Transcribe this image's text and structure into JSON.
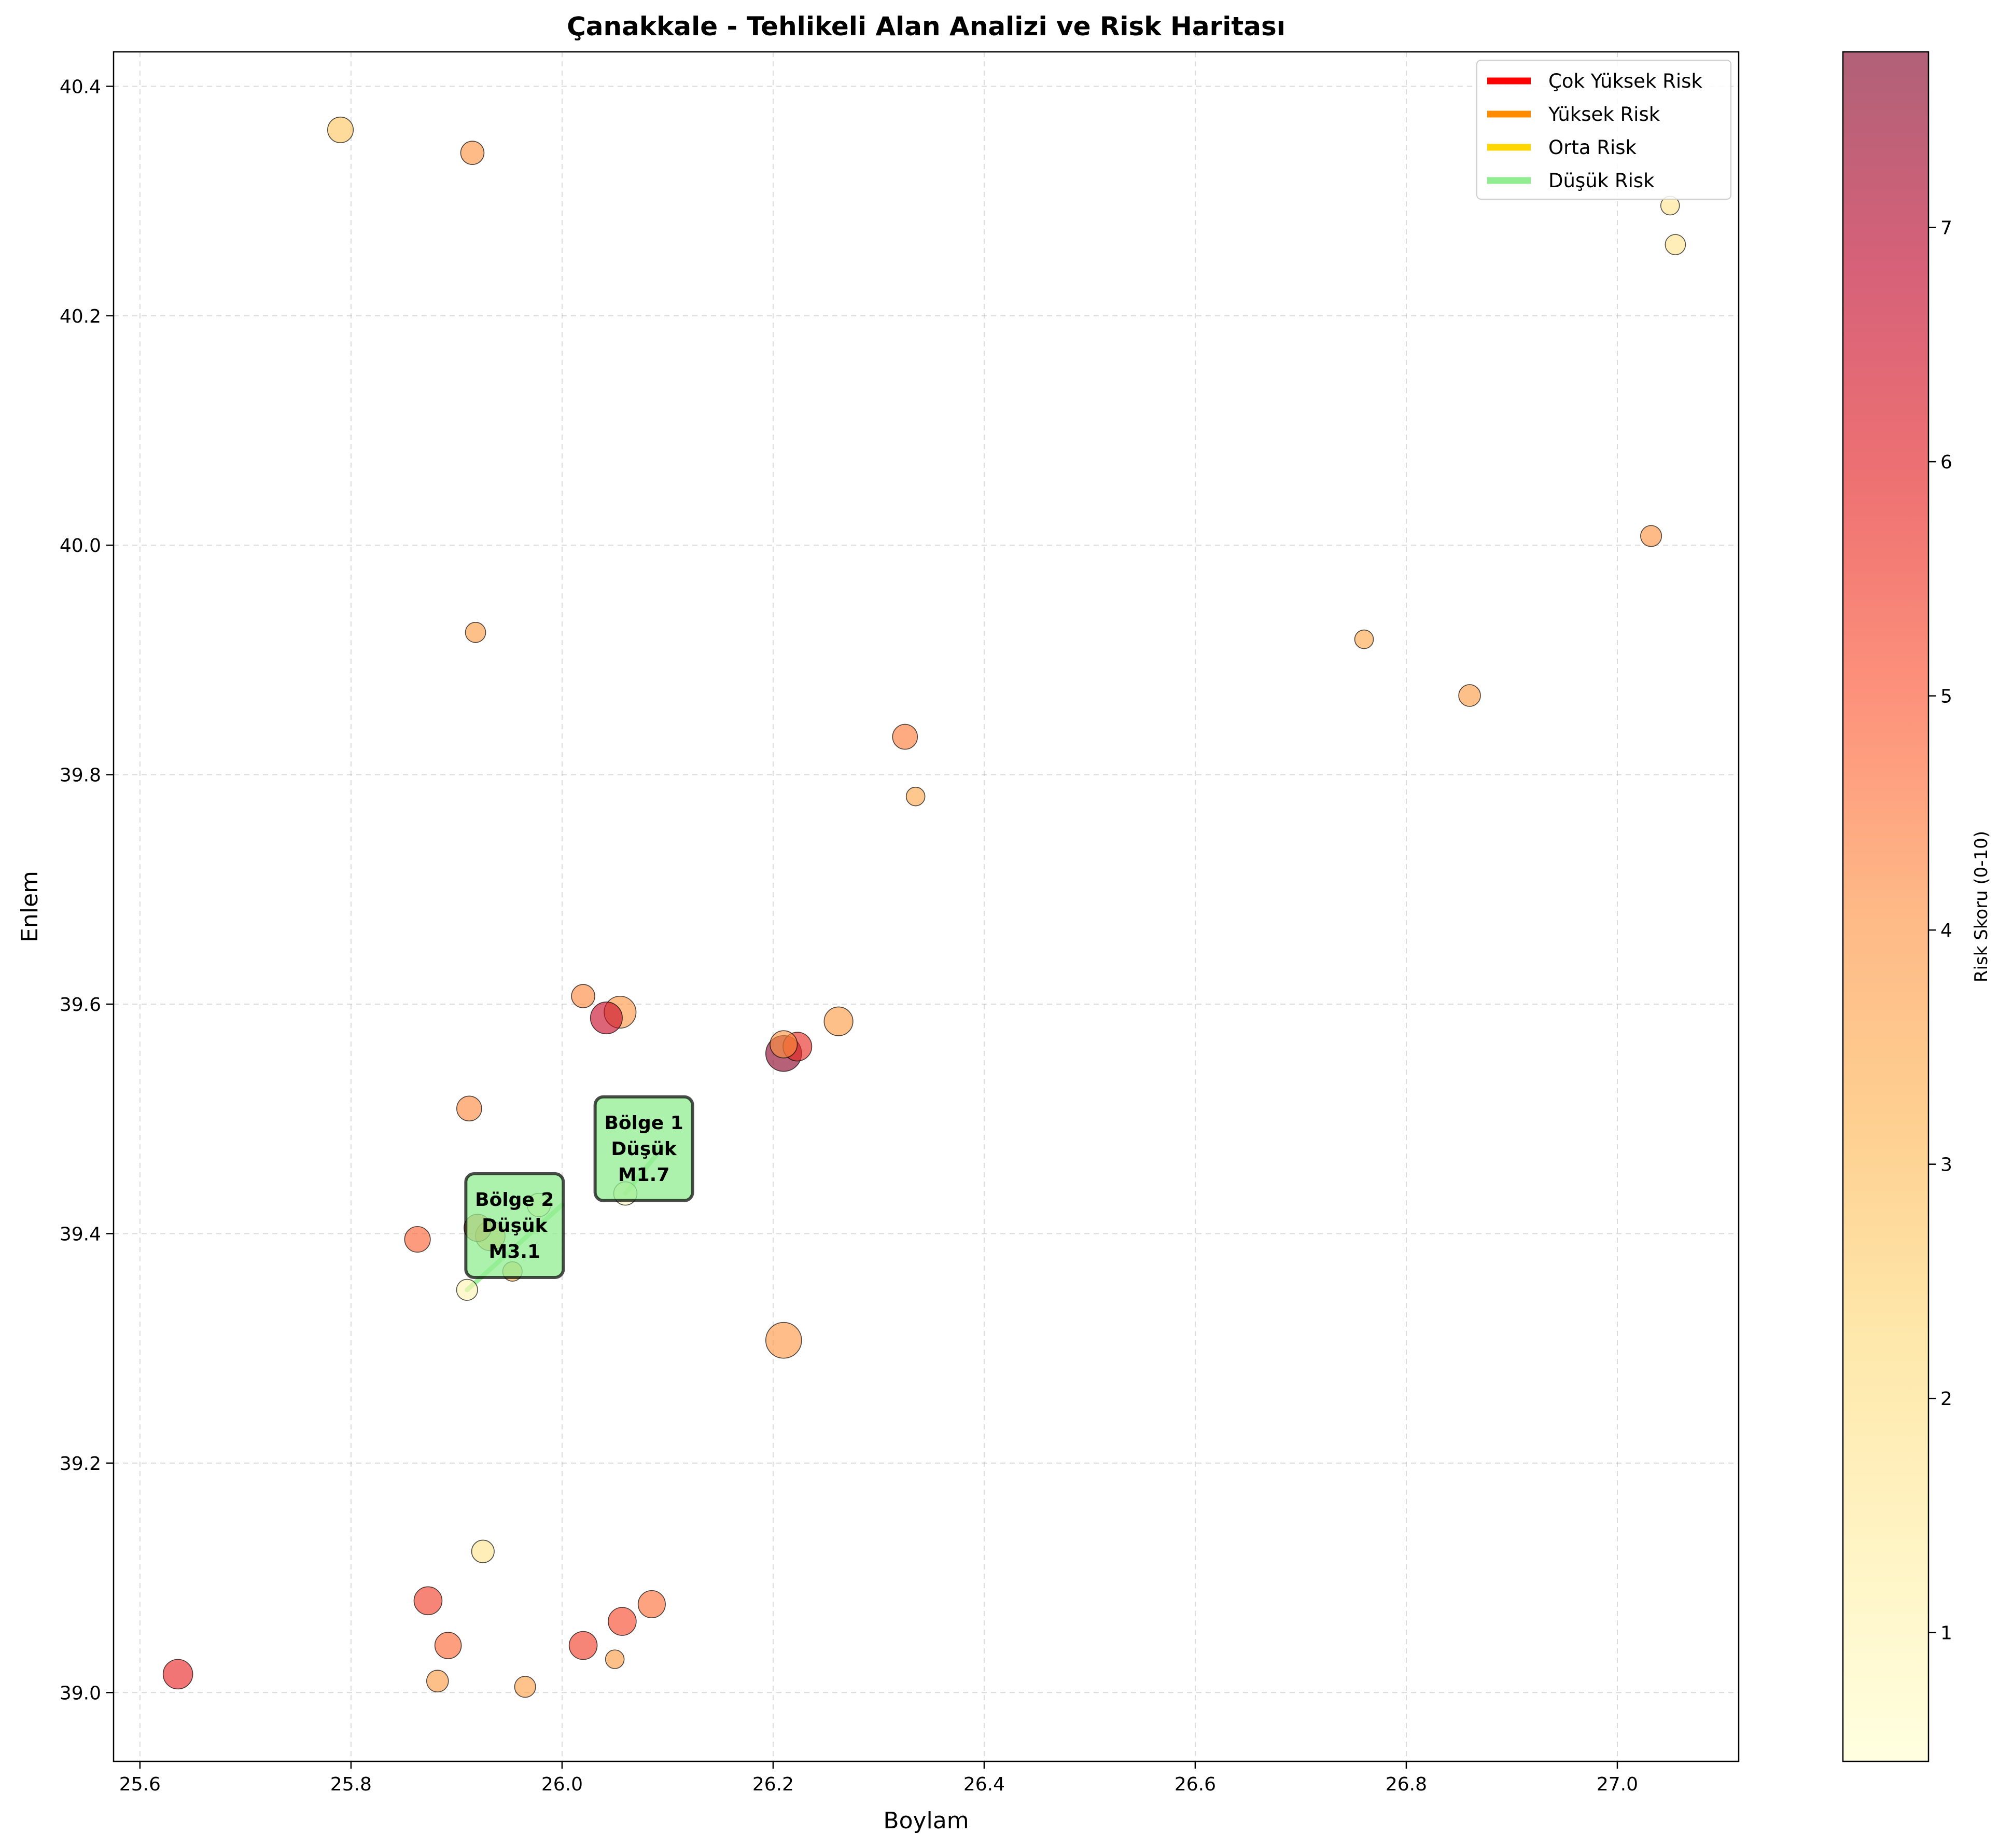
{
  "chart_data": {
    "type": "scatter",
    "title": "Çanakkale - Tehlikeli Alan Analizi ve Risk Haritası",
    "xlabel": "Boylam",
    "ylabel": "Enlem",
    "xlim": [
      25.575,
      27.115
    ],
    "ylim": [
      38.94,
      40.43
    ],
    "xticks": [
      25.6,
      25.8,
      26.0,
      26.2,
      26.4,
      26.6,
      26.8,
      27.0
    ],
    "yticks": [
      39.0,
      39.2,
      39.4,
      39.6,
      39.8,
      40.0,
      40.2,
      40.4
    ],
    "xtick_labels": [
      "25.6",
      "25.8",
      "26.0",
      "26.2",
      "26.4",
      "26.6",
      "26.8",
      "27.0"
    ],
    "ytick_labels": [
      "39.0",
      "39.2",
      "39.4",
      "39.6",
      "39.8",
      "40.0",
      "40.2",
      "40.4"
    ],
    "grid": true,
    "colorbar": {
      "label": "Risk Skoru (0-10)",
      "min": 0.45,
      "max": 7.75,
      "ticks": [
        1,
        2,
        3,
        4,
        5,
        6,
        7
      ],
      "tick_labels": [
        "1",
        "2",
        "3",
        "4",
        "5",
        "6",
        "7"
      ],
      "colormap": "YlOrRd"
    },
    "legend": {
      "position": "top-right",
      "entries": [
        {
          "label": "Çok Yüksek Risk",
          "color": "#ff0000"
        },
        {
          "label": "Yüksek Risk",
          "color": "#ff8c00"
        },
        {
          "label": "Orta Risk",
          "color": "#ffd700"
        },
        {
          "label": "Düşük Risk",
          "color": "#90ee90"
        }
      ]
    },
    "points": [
      {
        "x": 25.79,
        "y": 40.362,
        "risk": 2.8,
        "magnitude": 3.3
      },
      {
        "x": 25.915,
        "y": 40.342,
        "risk": 4.0,
        "magnitude": 3.0
      },
      {
        "x": 27.05,
        "y": 40.296,
        "risk": 1.8,
        "magnitude": 2.4
      },
      {
        "x": 27.055,
        "y": 40.262,
        "risk": 1.8,
        "magnitude": 2.6
      },
      {
        "x": 27.032,
        "y": 40.008,
        "risk": 4.0,
        "magnitude": 2.7
      },
      {
        "x": 25.918,
        "y": 39.924,
        "risk": 3.8,
        "magnitude": 2.6
      },
      {
        "x": 26.76,
        "y": 39.918,
        "risk": 3.5,
        "magnitude": 2.4
      },
      {
        "x": 26.86,
        "y": 39.869,
        "risk": 3.8,
        "magnitude": 2.8
      },
      {
        "x": 26.325,
        "y": 39.833,
        "risk": 4.4,
        "magnitude": 3.2
      },
      {
        "x": 26.335,
        "y": 39.781,
        "risk": 3.5,
        "magnitude": 2.4
      },
      {
        "x": 26.02,
        "y": 39.607,
        "risk": 4.2,
        "magnitude": 3.0
      },
      {
        "x": 26.055,
        "y": 39.593,
        "risk": 3.9,
        "magnitude": 4.1
      },
      {
        "x": 26.042,
        "y": 39.588,
        "risk": 6.6,
        "magnitude": 4.1
      },
      {
        "x": 26.262,
        "y": 39.585,
        "risk": 3.8,
        "magnitude": 3.7
      },
      {
        "x": 26.21,
        "y": 39.565,
        "risk": 4.0,
        "magnitude": 3.5
      },
      {
        "x": 26.223,
        "y": 39.563,
        "risk": 5.7,
        "magnitude": 3.7
      },
      {
        "x": 26.21,
        "y": 39.557,
        "risk": 7.6,
        "magnitude": 4.6
      },
      {
        "x": 25.912,
        "y": 39.509,
        "risk": 4.2,
        "magnitude": 3.2
      },
      {
        "x": 26.06,
        "y": 39.435,
        "risk": 0.8,
        "magnitude": 3.0
      },
      {
        "x": 25.978,
        "y": 39.425,
        "risk": 0.8,
        "magnitude": 3.0
      },
      {
        "x": 25.92,
        "y": 39.405,
        "risk": 4.8,
        "magnitude": 3.5
      },
      {
        "x": 25.932,
        "y": 39.398,
        "risk": 3.8,
        "magnitude": 3.8
      },
      {
        "x": 25.863,
        "y": 39.395,
        "risk": 4.8,
        "magnitude": 3.3
      },
      {
        "x": 25.953,
        "y": 39.367,
        "risk": 3.2,
        "magnitude": 2.5
      },
      {
        "x": 25.91,
        "y": 39.351,
        "risk": 1.0,
        "magnitude": 2.7
      },
      {
        "x": 26.21,
        "y": 39.307,
        "risk": 3.9,
        "magnitude": 4.6
      },
      {
        "x": 25.925,
        "y": 39.123,
        "risk": 1.8,
        "magnitude": 2.9
      },
      {
        "x": 25.873,
        "y": 39.08,
        "risk": 5.4,
        "magnitude": 3.6
      },
      {
        "x": 26.085,
        "y": 39.077,
        "risk": 4.6,
        "magnitude": 3.5
      },
      {
        "x": 26.057,
        "y": 39.062,
        "risk": 5.2,
        "magnitude": 3.6
      },
      {
        "x": 25.892,
        "y": 39.041,
        "risk": 4.7,
        "magnitude": 3.4
      },
      {
        "x": 26.02,
        "y": 39.041,
        "risk": 5.4,
        "magnitude": 3.6
      },
      {
        "x": 26.05,
        "y": 39.029,
        "risk": 3.8,
        "magnitude": 2.4
      },
      {
        "x": 25.636,
        "y": 39.016,
        "risk": 5.8,
        "magnitude": 3.8
      },
      {
        "x": 25.882,
        "y": 39.01,
        "risk": 3.8,
        "magnitude": 2.8
      },
      {
        "x": 25.965,
        "y": 39.005,
        "risk": 3.7,
        "magnitude": 2.7
      }
    ],
    "zones": [
      {
        "name": "Bölge 1",
        "level": "Düşük",
        "magnitude_label": "M1.7",
        "color": "#90ee90",
        "path": [
          [
            26.095,
            39.475
          ],
          [
            26.06,
            39.435
          ]
        ]
      },
      {
        "name": "Bölge 2",
        "level": "Düşük",
        "magnitude_label": "M3.1",
        "color": "#90ee90",
        "path": [
          [
            25.91,
            39.351
          ],
          [
            26.0,
            39.425
          ]
        ]
      }
    ]
  }
}
